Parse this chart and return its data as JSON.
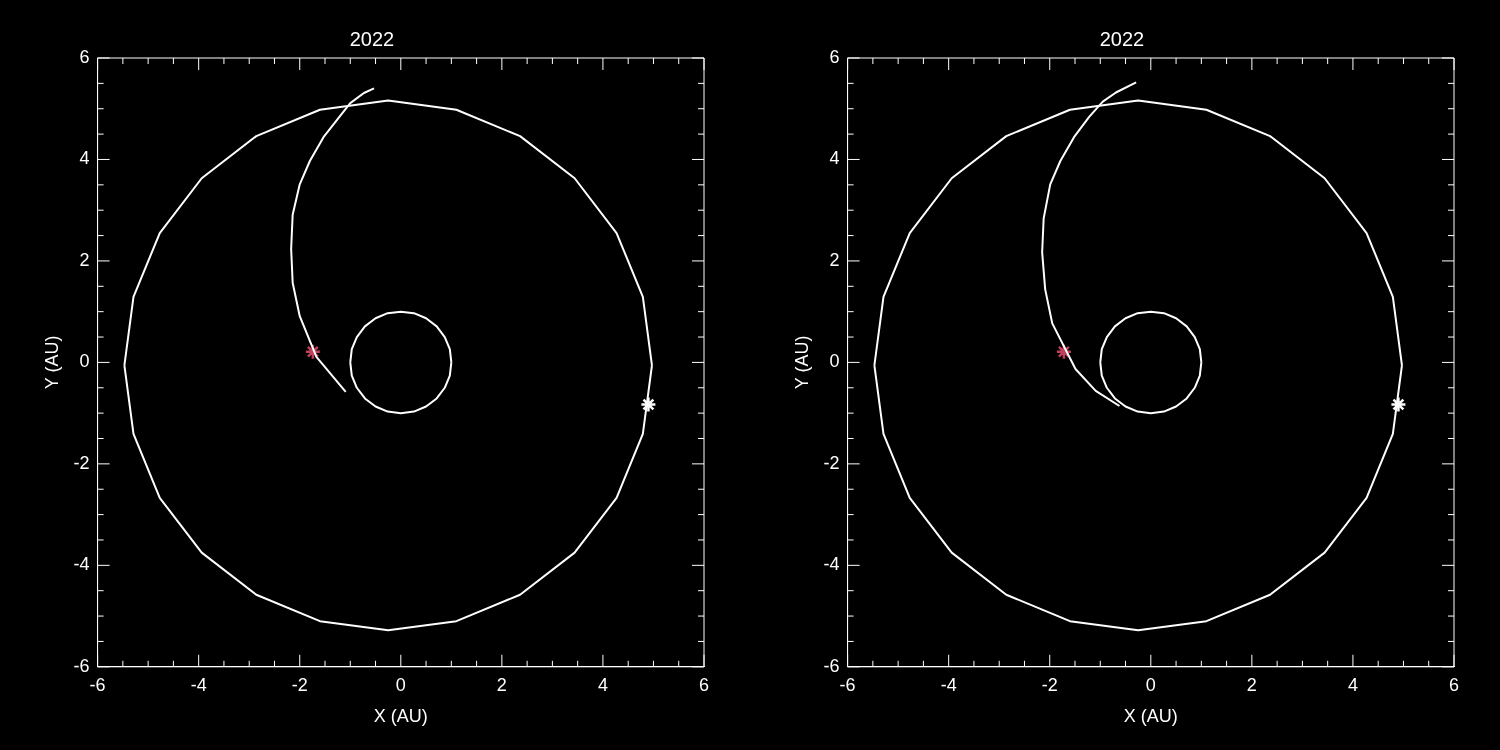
{
  "chart_data": [
    {
      "type": "line",
      "title": "2022",
      "xlabel": "X (AU)",
      "ylabel": "Y (AU)",
      "xlim": [
        -6,
        6
      ],
      "ylim": [
        -6,
        6
      ],
      "xticks": [
        -6,
        {
          "value": -5.5,
          "label": null
        },
        {
          "value": -5,
          "label": null
        },
        {
          "value": -4.5,
          "label": null
        },
        -4,
        {
          "value": -3.5,
          "label": null
        },
        {
          "value": -3,
          "label": null
        },
        {
          "value": -2.5,
          "label": null
        },
        -2,
        {
          "value": -1.5,
          "label": null
        },
        {
          "value": -1,
          "label": null
        },
        {
          "value": -0.5,
          "label": null
        },
        0,
        {
          "value": 0.5,
          "label": null
        },
        {
          "value": 1,
          "label": null
        },
        {
          "value": 1.5,
          "label": null
        },
        2,
        {
          "value": 2.5,
          "label": null
        },
        {
          "value": 3,
          "label": null
        },
        {
          "value": 3.5,
          "label": null
        },
        4,
        {
          "value": 4.5,
          "label": null
        },
        {
          "value": 5,
          "label": null
        },
        {
          "value": 5.5,
          "label": null
        },
        6
      ],
      "yticks": [
        -6,
        {
          "value": -5.5,
          "label": null
        },
        {
          "value": -5,
          "label": null
        },
        {
          "value": -4.5,
          "label": null
        },
        -4,
        {
          "value": -3.5,
          "label": null
        },
        {
          "value": -3,
          "label": null
        },
        {
          "value": -2.5,
          "label": null
        },
        -2,
        {
          "value": -1.5,
          "label": null
        },
        {
          "value": -1,
          "label": null
        },
        {
          "value": -0.5,
          "label": null
        },
        0,
        {
          "value": 0.5,
          "label": null
        },
        {
          "value": 1,
          "label": null
        },
        {
          "value": 1.5,
          "label": null
        },
        2,
        {
          "value": 2.5,
          "label": null
        },
        {
          "value": 3,
          "label": null
        },
        {
          "value": 3.5,
          "label": null
        },
        4,
        {
          "value": 4.5,
          "label": null
        },
        {
          "value": 5,
          "label": null
        },
        {
          "value": 5.5,
          "label": null
        },
        6
      ],
      "legend": false,
      "grid": false,
      "series": [
        {
          "type": "line",
          "marker": "none",
          "color": "#ffffff",
          "x": [
            1,
            0.97,
            0.87,
            0.71,
            0.5,
            0.26,
            0,
            -0.26,
            -0.5,
            -0.71,
            -0.87,
            -0.97,
            -1,
            null,
            -1,
            -0.97,
            -0.87,
            -0.71,
            -0.5,
            -0.26,
            0,
            0.26,
            0.5,
            0.71,
            0.87,
            0.97,
            1
          ],
          "values": [
            0,
            0.26,
            0.5,
            0.71,
            0.87,
            0.97,
            1,
            0.97,
            0.87,
            0.71,
            0.5,
            0.26,
            0,
            null,
            0,
            -0.26,
            -0.5,
            -0.71,
            -0.87,
            -0.97,
            -1,
            -0.97,
            -0.87,
            -0.71,
            -0.5,
            -0.26,
            0
          ]
        },
        {
          "type": "line",
          "marker": "none",
          "color": "#fefefe",
          "x": [
            4.97,
            4.79,
            4.27,
            3.44,
            2.36,
            1.1,
            -0.25,
            -1.6,
            -2.86,
            -3.94,
            -4.77,
            -5.29,
            -5.47,
            null,
            -5.47,
            -5.29,
            -4.77,
            -3.94,
            -2.86,
            -1.6,
            -0.25,
            1.1,
            2.36,
            3.44,
            4.27,
            4.79,
            4.97
          ],
          "values": [
            -0.06,
            1.29,
            2.55,
            3.63,
            4.46,
            4.98,
            5.16,
            4.98,
            4.46,
            3.63,
            2.55,
            1.29,
            -0.06,
            null,
            -0.06,
            -1.41,
            -2.67,
            -3.75,
            -4.58,
            -5.1,
            -5.28,
            -5.1,
            -4.58,
            -3.75,
            -2.67,
            -1.41,
            -0.06
          ]
        },
        {
          "type": "line",
          "marker": "none",
          "color": "#fdfdfd",
          "x": [
            -1.09,
            -1.67,
            -2.0,
            -2.14,
            -2.17,
            -2.14,
            -2.0,
            -1.8,
            -1.53,
            -1.27,
            -1.0,
            -0.73,
            -0.53
          ],
          "values": [
            -0.58,
            0.11,
            0.91,
            1.57,
            2.24,
            2.91,
            3.51,
            3.97,
            4.44,
            4.77,
            5.11,
            5.31,
            5.4
          ]
        },
        {
          "type": "scatter",
          "marker": "cross",
          "color": "#c0405a",
          "x": [
            -1.74
          ],
          "values": [
            0.21
          ]
        },
        {
          "type": "scatter",
          "marker": "cross",
          "color": "#fcfcfc",
          "x": [
            4.9
          ],
          "values": [
            -0.83
          ]
        }
      ]
    },
    {
      "type": "line",
      "title": "2022",
      "xlabel": "X (AU)",
      "ylabel": "Y (AU)",
      "xlim": [
        -6,
        6
      ],
      "ylim": [
        -6,
        6
      ],
      "xticks": [
        -6,
        {
          "value": -5.5,
          "label": null
        },
        {
          "value": -5,
          "label": null
        },
        {
          "value": -4.5,
          "label": null
        },
        -4,
        {
          "value": -3.5,
          "label": null
        },
        {
          "value": -3,
          "label": null
        },
        {
          "value": -2.5,
          "label": null
        },
        -2,
        {
          "value": -1.5,
          "label": null
        },
        {
          "value": -1,
          "label": null
        },
        {
          "value": -0.5,
          "label": null
        },
        0,
        {
          "value": 0.5,
          "label": null
        },
        {
          "value": 1,
          "label": null
        },
        {
          "value": 1.5,
          "label": null
        },
        2,
        {
          "value": 2.5,
          "label": null
        },
        {
          "value": 3,
          "label": null
        },
        {
          "value": 3.5,
          "label": null
        },
        4,
        {
          "value": 4.5,
          "label": null
        },
        {
          "value": 5,
          "label": null
        },
        {
          "value": 5.5,
          "label": null
        },
        6
      ],
      "yticks": [
        -6,
        {
          "value": -5.5,
          "label": null
        },
        {
          "value": -5,
          "label": null
        },
        {
          "value": -4.5,
          "label": null
        },
        -4,
        {
          "value": -3.5,
          "label": null
        },
        {
          "value": -3,
          "label": null
        },
        {
          "value": -2.5,
          "label": null
        },
        -2,
        {
          "value": -1.5,
          "label": null
        },
        {
          "value": -1,
          "label": null
        },
        {
          "value": -0.5,
          "label": null
        },
        0,
        {
          "value": 0.5,
          "label": null
        },
        {
          "value": 1,
          "label": null
        },
        {
          "value": 1.5,
          "label": null
        },
        2,
        {
          "value": 2.5,
          "label": null
        },
        {
          "value": 3,
          "label": null
        },
        {
          "value": 3.5,
          "label": null
        },
        4,
        {
          "value": 4.5,
          "label": null
        },
        {
          "value": 5,
          "label": null
        },
        {
          "value": 5.5,
          "label": null
        },
        6
      ],
      "legend": false,
      "grid": false,
      "series": [
        {
          "type": "line",
          "marker": "none",
          "color": "#ffffff",
          "x": [
            1,
            0.97,
            0.87,
            0.71,
            0.5,
            0.26,
            0,
            -0.26,
            -0.5,
            -0.71,
            -0.87,
            -0.97,
            -1,
            null,
            -1,
            -0.97,
            -0.87,
            -0.71,
            -0.5,
            -0.26,
            0,
            0.26,
            0.5,
            0.71,
            0.87,
            0.97,
            1
          ],
          "values": [
            0,
            0.26,
            0.5,
            0.71,
            0.87,
            0.97,
            1,
            0.97,
            0.87,
            0.71,
            0.5,
            0.26,
            0,
            null,
            0,
            -0.26,
            -0.5,
            -0.71,
            -0.87,
            -0.97,
            -1,
            -0.97,
            -0.87,
            -0.71,
            -0.5,
            -0.26,
            0
          ]
        },
        {
          "type": "line",
          "marker": "none",
          "color": "#fefefe",
          "x": [
            4.97,
            4.79,
            4.27,
            3.44,
            2.36,
            1.1,
            -0.25,
            -1.6,
            -2.86,
            -3.94,
            -4.77,
            -5.29,
            -5.47,
            null,
            -5.47,
            -5.29,
            -4.77,
            -3.94,
            -2.86,
            -1.6,
            -0.25,
            1.1,
            2.36,
            3.44,
            4.27,
            4.79,
            4.97
          ],
          "values": [
            -0.06,
            1.29,
            2.55,
            3.63,
            4.46,
            4.98,
            5.16,
            4.98,
            4.46,
            3.63,
            2.55,
            1.29,
            -0.06,
            null,
            -0.06,
            -1.41,
            -2.67,
            -3.75,
            -4.58,
            -5.1,
            -5.28,
            -5.1,
            -4.58,
            -3.75,
            -2.67,
            -1.41,
            -0.06
          ]
        },
        {
          "type": "line",
          "marker": "none",
          "color": "#fdfdfd",
          "x": [
            -0.62,
            -1.09,
            -1.49,
            -1.95,
            -2.09,
            -2.15,
            -2.12,
            -1.99,
            -1.79,
            -1.52,
            -1.22,
            -0.95,
            -0.69,
            -0.29
          ],
          "values": [
            -0.86,
            -0.56,
            -0.13,
            0.77,
            1.44,
            2.17,
            2.84,
            3.51,
            3.97,
            4.44,
            4.84,
            5.14,
            5.32,
            5.52
          ]
        },
        {
          "type": "scatter",
          "marker": "cross",
          "color": "#c0405a",
          "x": [
            -1.72
          ],
          "values": [
            0.21
          ]
        },
        {
          "type": "scatter",
          "marker": "cross",
          "color": "#fcfcfc",
          "x": [
            4.9
          ],
          "values": [
            -0.83
          ]
        }
      ]
    }
  ]
}
